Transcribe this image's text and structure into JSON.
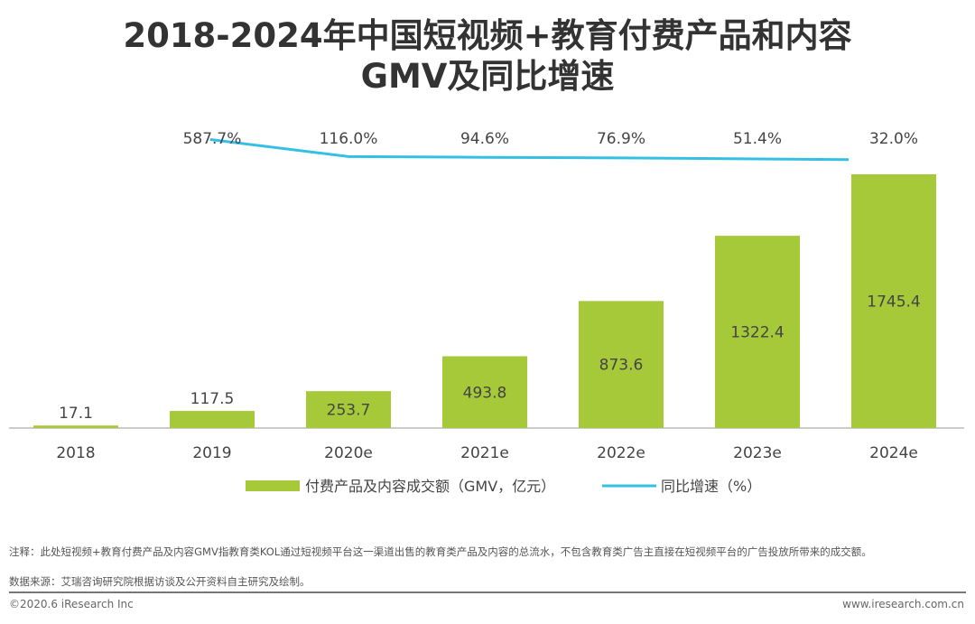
{
  "chart_data": {
    "type": "bar",
    "title": "2018-2024年中国短视频+教育付费产品和内容GMV及同比增速",
    "title_lines": [
      "2018-2024年中国短视频+教育付费产品和内容",
      "GMV及同比增速"
    ],
    "categories": [
      "2018",
      "2019",
      "2020e",
      "2021e",
      "2022e",
      "2023e",
      "2024e"
    ],
    "series": [
      {
        "name": "付费产品及内容成交额（GMV，亿元）",
        "type": "bar",
        "color": "#a6c93a",
        "values": [
          17.1,
          117.5,
          253.7,
          493.8,
          873.6,
          1322.4,
          1745.4
        ],
        "labels": [
          "17.1",
          "117.5",
          "253.7",
          "493.8",
          "873.6",
          "1322.4",
          "1745.4"
        ]
      },
      {
        "name": "同比增速（%）",
        "type": "line",
        "color": "#33c0e3",
        "x": [
          "2019",
          "2020e",
          "2021e",
          "2022e",
          "2023e",
          "2024e"
        ],
        "values": [
          587.7,
          116.0,
          94.6,
          76.9,
          51.4,
          32.0
        ],
        "labels": [
          "587.7%",
          "116.0%",
          "94.6%",
          "76.9%",
          "51.4%",
          "32.0%"
        ]
      }
    ],
    "legend": "bottom",
    "grid": false
  },
  "footnote": {
    "note": "注释：此处短视频+教育付费产品及内容GMV指教育类KOL通过短视频平台这一渠道出售的教育类产品及内容的总流水，不包含教育类广告主直接在短视频平台的广告投放所带来的成交额。",
    "source": "数据来源：艾瑞咨询研究院根据访谈及公开资料自主研究及绘制。",
    "copyright": "©2020.6 iResearch Inc",
    "website": "www.iresearch.com.cn"
  }
}
